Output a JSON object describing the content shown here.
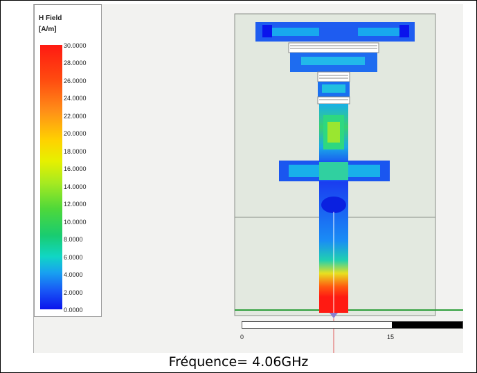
{
  "legend": {
    "title_line1": "H Field",
    "title_line2": "[A/m]",
    "ticks": [
      "30.0000",
      "28.0000",
      "26.0000",
      "24.0000",
      "22.0000",
      "20.0000",
      "18.0000",
      "16.0000",
      "14.0000",
      "12.0000",
      "10.0000",
      "8.0000",
      "6.0000",
      "4.0000",
      "2.0000",
      "0.0000"
    ]
  },
  "scale": {
    "start_label": "0",
    "mid_label": "15"
  },
  "caption": "Fréquence= 4.06GHz",
  "colors": {
    "field_max": "#ff1a12",
    "field_min": "#0a14ec",
    "substrate": "#e2e8df"
  }
}
